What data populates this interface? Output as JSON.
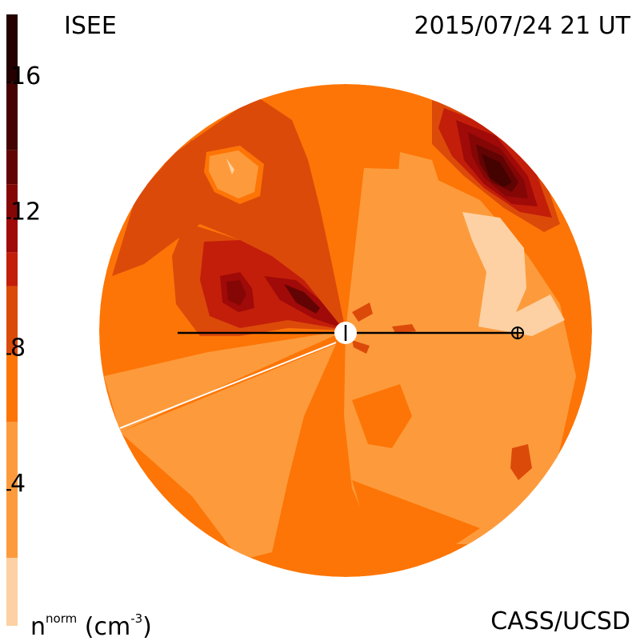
{
  "header": {
    "source": "ISEE",
    "timestamp": "2015/07/24 21 UT"
  },
  "footer": {
    "unit_base": "n",
    "unit_sup": "norm",
    "unit_text": "(cm",
    "unit_exp": "-3",
    "unit_close": ")",
    "credit": "CASS/UCSD"
  },
  "chart_data": {
    "type": "heatmap",
    "projection": "polar ecliptic plane view centred on the Sun",
    "colorbar": {
      "orientation": "vertical-left",
      "min": 0,
      "max": 18,
      "tick_labels": [
        "4",
        "8",
        "12",
        "16"
      ],
      "ticks": [
        4,
        8,
        12,
        16
      ],
      "levels": [
        {
          "lo": 0,
          "hi": 2,
          "color": "#fdd1a4"
        },
        {
          "lo": 2,
          "hi": 6,
          "color": "#fd9b3c"
        },
        {
          "lo": 6,
          "hi": 8,
          "color": "#fd7506"
        },
        {
          "lo": 8,
          "hi": 10,
          "color": "#dc4a0a"
        },
        {
          "lo": 10,
          "hi": 11,
          "color": "#c31e0a"
        },
        {
          "lo": 11,
          "hi": 12,
          "color": "#a00a08"
        },
        {
          "lo": 12,
          "hi": 13,
          "color": "#840706"
        },
        {
          "lo": 13,
          "hi": 14,
          "color": "#620403"
        },
        {
          "lo": 14,
          "hi": 16,
          "color": "#440201"
        },
        {
          "lo": 16,
          "hi": 18,
          "color": "#240000"
        }
      ]
    },
    "markers": [
      {
        "name": "Sun",
        "symbol": "circle-tick"
      },
      {
        "name": "Earth",
        "symbol": "circled-plus"
      }
    ]
  }
}
